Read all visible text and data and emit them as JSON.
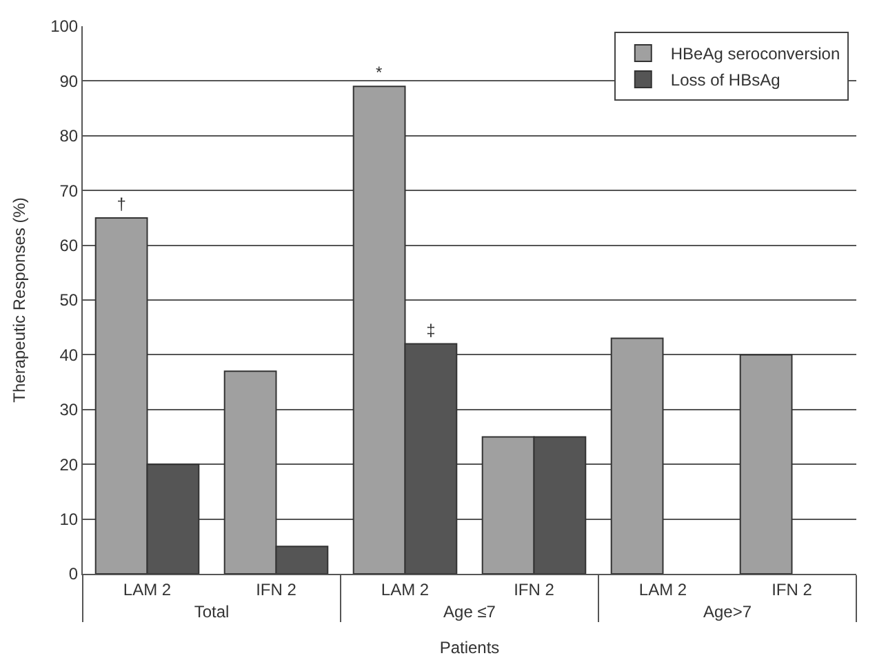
{
  "chart_data": {
    "type": "bar",
    "xlabel": "Patients",
    "ylabel": "Therapeutic Responses (%)",
    "categories": [
      "LAM 2",
      "IFN 2",
      "LAM 2",
      "IFN 2",
      "LAM 2",
      "IFN 2"
    ],
    "annotations": [
      "Total",
      "Age ≤7",
      "Age>7"
    ],
    "series": [
      {
        "name": "HBeAg seroconversion",
        "color": "#a0a0a0",
        "values": [
          65,
          37,
          89,
          25,
          43,
          40
        ],
        "value_labels": [
          "†",
          null,
          "*",
          null,
          null,
          null
        ]
      },
      {
        "name": "Loss of HBsAg",
        "color": "#555555",
        "values": [
          20,
          5,
          42,
          25,
          null,
          null
        ],
        "value_labels": [
          null,
          null,
          "‡",
          null,
          null,
          null
        ]
      }
    ],
    "ylim": [
      0,
      100
    ],
    "yticks": [
      0,
      10,
      20,
      30,
      40,
      50,
      60,
      70,
      80,
      90,
      100
    ],
    "grid": "y",
    "legend": "top right"
  }
}
